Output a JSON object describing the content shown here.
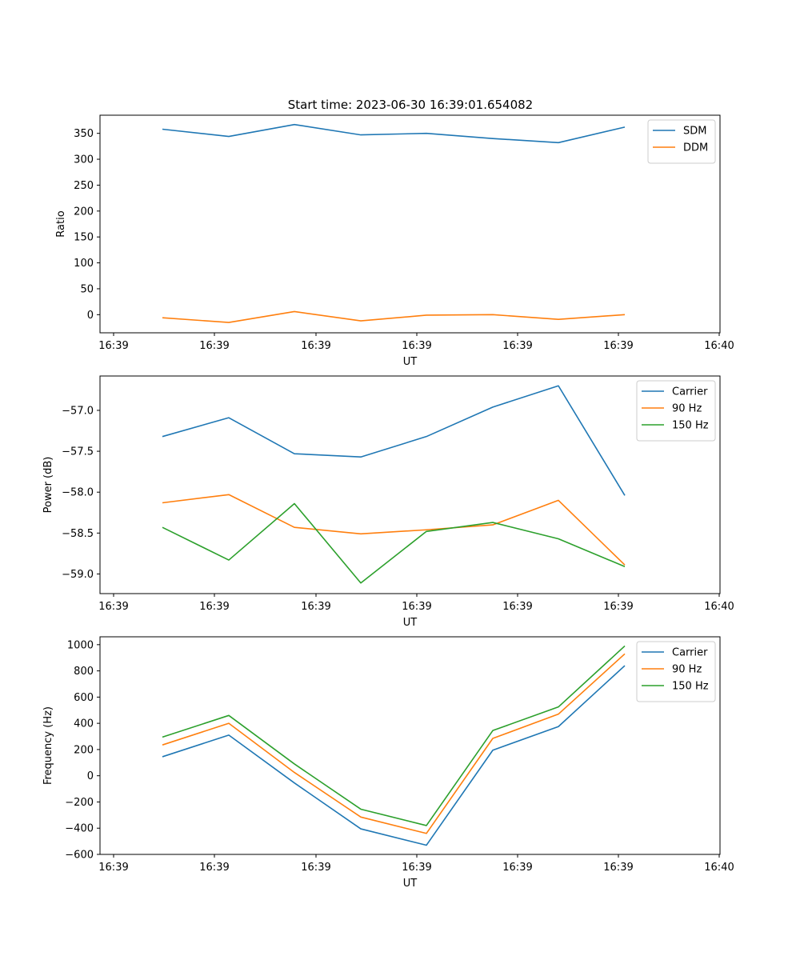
{
  "figure": {
    "title": "Start time: 2023-06-30 16:39:01.654082"
  },
  "chart_data": [
    {
      "type": "line",
      "title": "Start time: 2023-06-30 16:39:01.654082",
      "xlabel": "UT",
      "ylabel": "Ratio",
      "x_ticks": [
        "16:39",
        "16:39",
        "16:39",
        "16:39",
        "16:39",
        "16:39",
        "16:40"
      ],
      "y_ticks": [
        "0",
        "50",
        "100",
        "150",
        "200",
        "250",
        "300",
        "350"
      ],
      "ylim": [
        -35,
        385
      ],
      "grid": false,
      "legend_position": "top-right",
      "series": [
        {
          "name": "SDM",
          "color": "#1f77b4",
          "values": [
            358,
            344,
            367,
            347,
            350,
            340,
            332,
            362
          ]
        },
        {
          "name": "DDM",
          "color": "#ff7f0e",
          "values": [
            -6,
            -15,
            6,
            -12,
            -1,
            0,
            -9,
            0
          ]
        }
      ]
    },
    {
      "type": "line",
      "xlabel": "UT",
      "ylabel": "Power (dB)",
      "x_ticks": [
        "16:39",
        "16:39",
        "16:39",
        "16:39",
        "16:39",
        "16:39",
        "16:40"
      ],
      "y_ticks": [
        "−57.0",
        "−57.5",
        "−58.0",
        "−58.5",
        "−59.0"
      ],
      "ylim": [
        -59.24,
        -56.58
      ],
      "grid": false,
      "legend_position": "top-right",
      "series": [
        {
          "name": "Carrier",
          "color": "#1f77b4",
          "values": [
            -57.32,
            -57.09,
            -57.53,
            -57.57,
            -57.32,
            -56.96,
            -56.7,
            -58.04
          ]
        },
        {
          "name": "90 Hz",
          "color": "#ff7f0e",
          "values": [
            -58.13,
            -58.03,
            -58.43,
            -58.51,
            -58.46,
            -58.4,
            -58.1,
            -58.89
          ]
        },
        {
          "name": "150 Hz",
          "color": "#2ca02c",
          "values": [
            -58.43,
            -58.83,
            -58.14,
            -59.11,
            -58.48,
            -58.37,
            -58.57,
            -58.91
          ]
        }
      ]
    },
    {
      "type": "line",
      "xlabel": "UT",
      "ylabel": "Frequency (Hz)",
      "x_ticks": [
        "16:39",
        "16:39",
        "16:39",
        "16:39",
        "16:39",
        "16:39",
        "16:40"
      ],
      "y_ticks": [
        "−600",
        "−400",
        "−200",
        "0",
        "200",
        "400",
        "600",
        "800",
        "1000"
      ],
      "ylim": [
        -600,
        1060
      ],
      "grid": false,
      "legend_position": "top-right",
      "series": [
        {
          "name": "Carrier",
          "color": "#1f77b4",
          "values": [
            145,
            310,
            -55,
            -405,
            -530,
            195,
            375,
            840
          ]
        },
        {
          "name": "90 Hz",
          "color": "#ff7f0e",
          "values": [
            235,
            400,
            25,
            -315,
            -440,
            285,
            470,
            930
          ]
        },
        {
          "name": "150 Hz",
          "color": "#2ca02c",
          "values": [
            295,
            460,
            90,
            -255,
            -380,
            345,
            525,
            990
          ]
        }
      ]
    }
  ]
}
